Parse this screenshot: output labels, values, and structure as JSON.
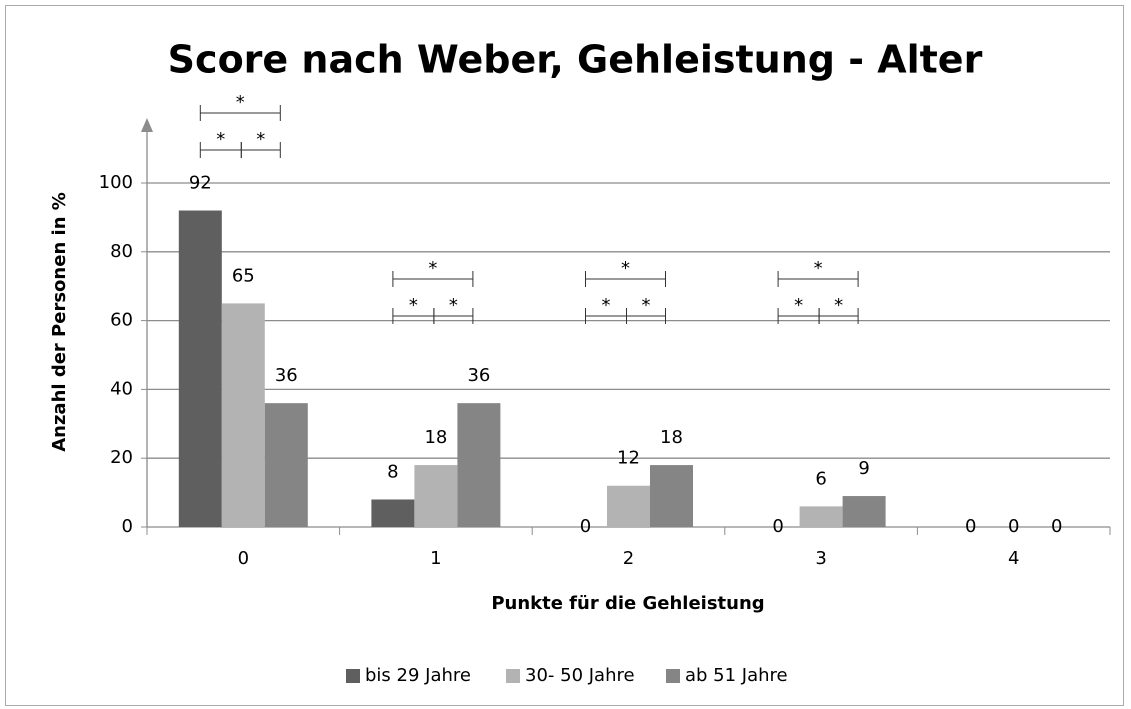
{
  "chart_data": {
    "type": "bar",
    "title": "Score nach Weber, Gehleistung - Alter",
    "x_label": "Punkte für die Gehleistung",
    "y_label": "Anzahl der Personen in %",
    "categories": [
      "0",
      "1",
      "2",
      "3",
      "4"
    ],
    "series": [
      {
        "name": "bis 29 Jahre",
        "color": "#5f5f5f",
        "values": [
          92,
          8,
          0,
          0,
          0
        ]
      },
      {
        "name": "30- 50 Jahre",
        "color": "#b3b3b3",
        "values": [
          65,
          18,
          12,
          6,
          0
        ]
      },
      {
        "name": "ab 51 Jahre",
        "color": "#858585",
        "values": [
          36,
          36,
          18,
          9,
          0
        ]
      }
    ],
    "ylim": [
      0,
      100
    ],
    "yticks": [
      0,
      20,
      40,
      60,
      80,
      100
    ],
    "grid": true,
    "legend": "bottom",
    "significance": [
      {
        "category": 0,
        "comparisons": [
          {
            "from": 0,
            "to": 2,
            "label": "*"
          },
          {
            "from": 0,
            "to": 1,
            "label": "*"
          },
          {
            "from": 1,
            "to": 2,
            "label": "*"
          }
        ]
      },
      {
        "category": 1,
        "comparisons": [
          {
            "from": 0,
            "to": 2,
            "label": "*"
          },
          {
            "from": 0,
            "to": 1,
            "label": "*"
          },
          {
            "from": 1,
            "to": 2,
            "label": "*"
          }
        ]
      },
      {
        "category": 2,
        "comparisons": [
          {
            "from": 0,
            "to": 2,
            "label": "*"
          },
          {
            "from": 0,
            "to": 1,
            "label": "*"
          },
          {
            "from": 1,
            "to": 2,
            "label": "*"
          }
        ]
      },
      {
        "category": 3,
        "comparisons": [
          {
            "from": 0,
            "to": 2,
            "label": "*"
          },
          {
            "from": 0,
            "to": 1,
            "label": "*"
          },
          {
            "from": 1,
            "to": 2,
            "label": "*"
          }
        ]
      }
    ]
  }
}
